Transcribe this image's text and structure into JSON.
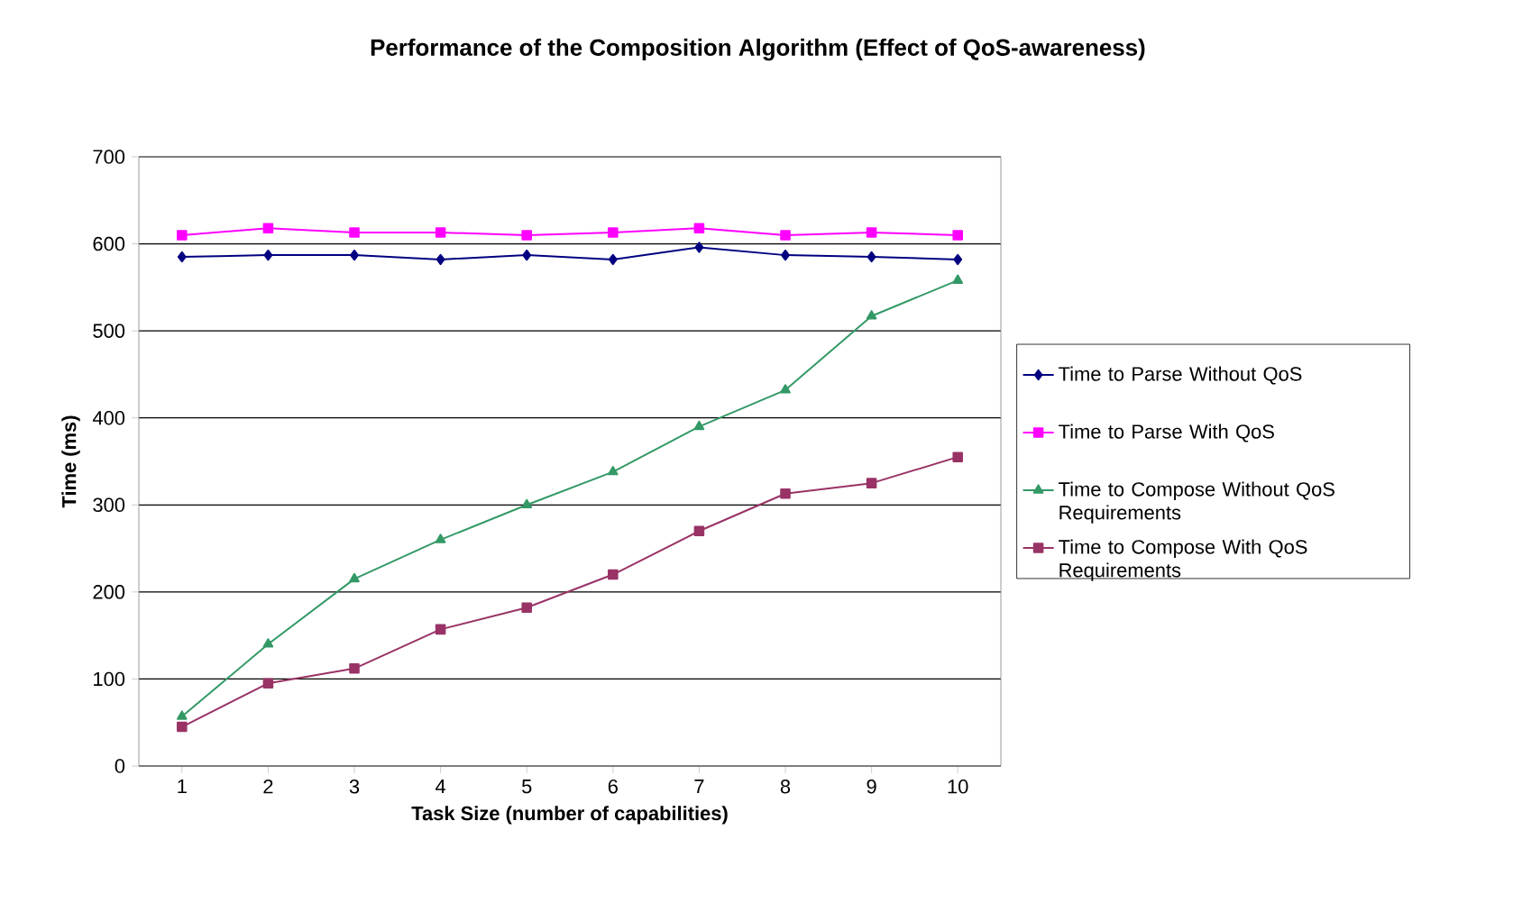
{
  "chart_data": {
    "type": "line",
    "title": "Performance of the Composition Algorithm (Effect of QoS-awareness)",
    "xlabel": "Task Size (number of capabilities)",
    "ylabel": "Time (ms)",
    "categories": [
      "1",
      "2",
      "3",
      "4",
      "5",
      "6",
      "7",
      "8",
      "9",
      "10"
    ],
    "ylim": [
      0,
      700
    ],
    "yticks": [
      0,
      100,
      200,
      300,
      400,
      500,
      600,
      700
    ],
    "grid": "y",
    "legend": "right",
    "series": [
      {
        "name": "Time to Parse Without QoS",
        "color": "#000080",
        "marker": "diamond",
        "values": [
          585,
          587,
          587,
          582,
          587,
          582,
          596,
          587,
          585,
          582
        ]
      },
      {
        "name": "Time to Parse With QoS",
        "color": "#ff00ff",
        "marker": "square",
        "values": [
          610,
          618,
          613,
          613,
          610,
          613,
          618,
          610,
          613,
          610
        ]
      },
      {
        "name": "Time to Compose Without QoS Requirements",
        "color": "#339966",
        "marker": "triangle",
        "values": [
          57,
          140,
          215,
          260,
          300,
          338,
          390,
          432,
          517,
          558
        ]
      },
      {
        "name": "Time to Compose With QoS Requirements",
        "color": "#993366",
        "marker": "square",
        "values": [
          45,
          95,
          112,
          157,
          182,
          220,
          270,
          313,
          325,
          355
        ]
      }
    ]
  }
}
